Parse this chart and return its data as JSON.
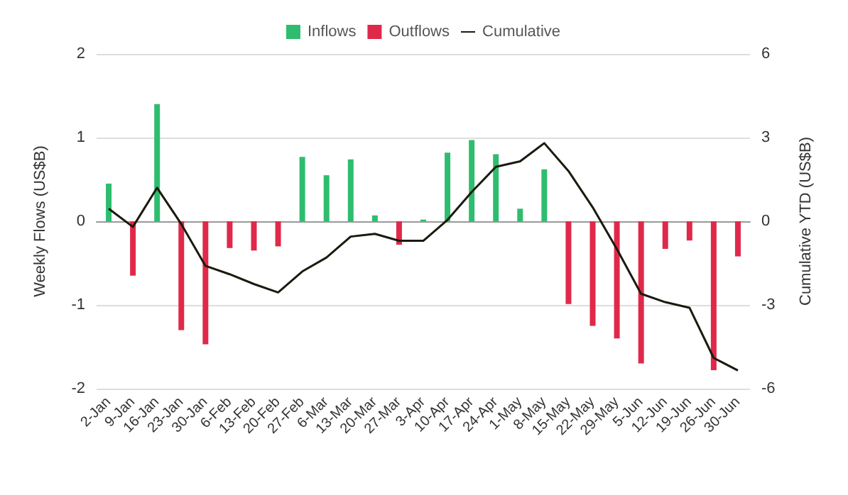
{
  "chart_data": {
    "type": "bar",
    "ylabel": "Weekly Flows (US$B)",
    "y2label": "Cumulative YTD (US$B)",
    "categories": [
      "2-Jan",
      "9-Jan",
      "16-Jan",
      "23-Jan",
      "30-Jan",
      "6-Feb",
      "13-Feb",
      "20-Feb",
      "27-Feb",
      "6-Mar",
      "13-Mar",
      "20-Mar",
      "27-Mar",
      "3-Apr",
      "10-Apr",
      "17-Apr",
      "24-Apr",
      "1-May",
      "8-May",
      "15-May",
      "22-May",
      "29-May",
      "5-Jun",
      "12-Jun",
      "19-Jun",
      "26-Jun",
      "30-Jun"
    ],
    "series": [
      {
        "name": "Inflows",
        "color": "#2ebd6e",
        "values": [
          0.45,
          null,
          1.4,
          null,
          null,
          null,
          null,
          null,
          0.77,
          0.55,
          0.74,
          0.07,
          null,
          0.02,
          0.82,
          0.97,
          0.8,
          0.15,
          0.62,
          null,
          null,
          null,
          null,
          null,
          null,
          null,
          null
        ]
      },
      {
        "name": "Outflows",
        "color": "#e0294a",
        "values": [
          null,
          -0.65,
          null,
          -1.3,
          -1.47,
          -0.32,
          -0.35,
          -0.3,
          null,
          null,
          null,
          null,
          -0.28,
          null,
          null,
          null,
          null,
          null,
          null,
          -0.99,
          -1.25,
          -1.4,
          -1.7,
          -0.33,
          -0.23,
          -1.78,
          -0.42
        ]
      },
      {
        "name": "Cumulative",
        "type": "line",
        "axis": "y2",
        "color": "#1a1a0e",
        "values": [
          0.45,
          -0.2,
          1.2,
          -0.1,
          -1.6,
          -1.9,
          -2.25,
          -2.55,
          -1.8,
          -1.3,
          -0.55,
          -0.45,
          -0.7,
          -0.7,
          0.05,
          1.05,
          1.95,
          2.15,
          2.8,
          1.8,
          0.5,
          -1.0,
          -2.6,
          -2.9,
          -3.1,
          -4.9,
          -5.35
        ]
      }
    ],
    "ylim": [
      -2,
      2
    ],
    "yticks": [
      -2,
      -1,
      0,
      1,
      2
    ],
    "y2lim": [
      -6,
      6
    ],
    "y2ticks": [
      -6,
      -3,
      0,
      3,
      6
    ],
    "grid": "y",
    "legend": "top",
    "marker": "none"
  }
}
